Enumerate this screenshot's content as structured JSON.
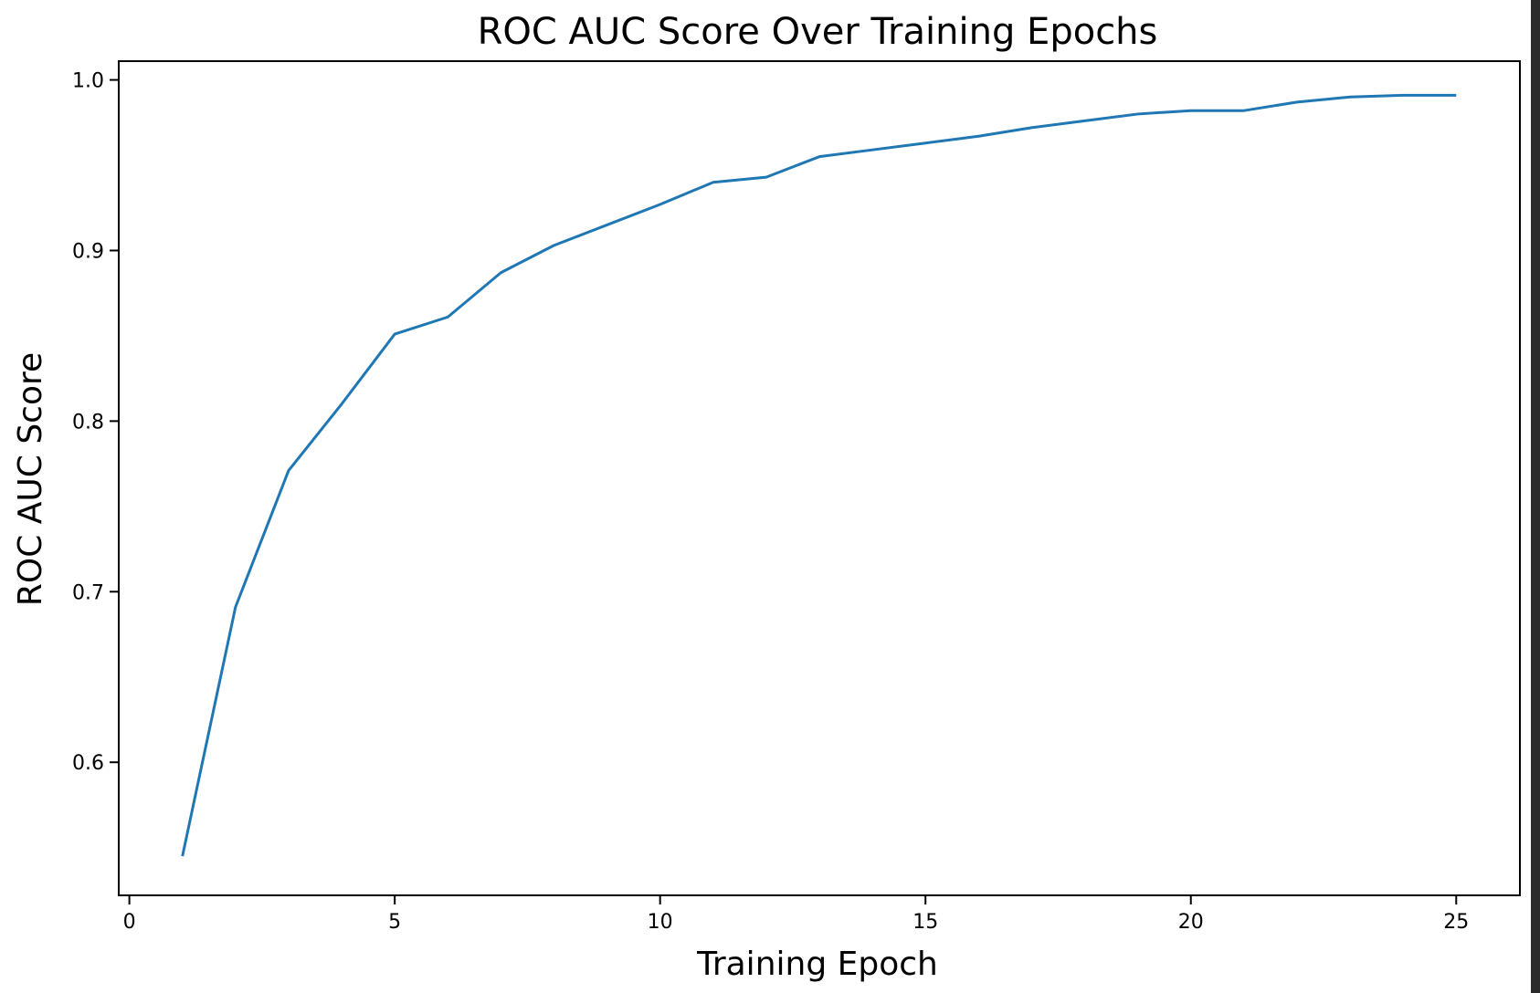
{
  "chart_data": {
    "type": "line",
    "title": "ROC AUC Score Over Training Epochs",
    "xlabel": "Training Epoch",
    "ylabel": "ROC AUC Score",
    "xlim": [
      -0.2,
      26.2
    ],
    "ylim": [
      0.522,
      1.011
    ],
    "xticks": [
      0,
      5,
      10,
      15,
      20,
      25
    ],
    "xtick_labels": [
      "0",
      "5",
      "10",
      "15",
      "20",
      "25"
    ],
    "yticks": [
      0.6,
      0.7,
      0.8,
      0.9,
      1.0
    ],
    "ytick_labels": [
      "0.6",
      "0.7",
      "0.8",
      "0.9",
      "1.0"
    ],
    "grid": false,
    "series": [
      {
        "color": "#1f77b4",
        "x": [
          1,
          2,
          3,
          4,
          5,
          6,
          7,
          8,
          9,
          10,
          11,
          12,
          13,
          14,
          15,
          16,
          17,
          18,
          19,
          20,
          21,
          22,
          23,
          24,
          25
        ],
        "y": [
          0.545,
          0.691,
          0.771,
          0.81,
          0.851,
          0.861,
          0.887,
          0.903,
          0.915,
          0.927,
          0.94,
          0.943,
          0.955,
          0.959,
          0.963,
          0.967,
          0.972,
          0.976,
          0.98,
          0.982,
          0.982,
          0.987,
          0.99,
          0.991,
          0.991
        ]
      }
    ]
  }
}
